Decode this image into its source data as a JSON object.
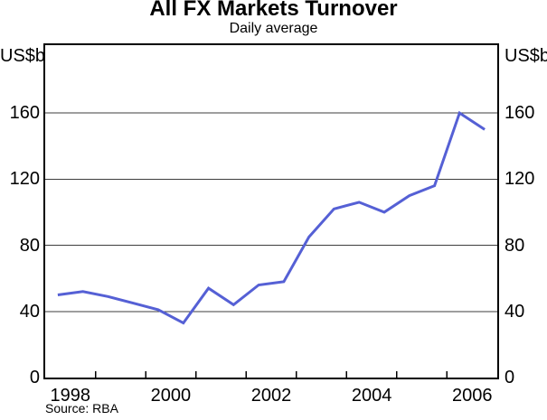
{
  "chart": {
    "title": "All FX Markets Turnover",
    "subtitle": "Daily average",
    "unit_left": "US$b",
    "unit_right": "US$b",
    "source": "Source: RBA"
  },
  "chart_data": {
    "type": "line",
    "title": "All FX Markets Turnover",
    "subtitle": "Daily average",
    "ylabel_left": "US$b",
    "ylabel_right": "US$b",
    "source": "Source: RBA",
    "grid": "horizontal",
    "legend_position": "none",
    "xlim": [
      1998,
      2007
    ],
    "ylim": [
      0,
      201
    ],
    "yticks": [
      0,
      40,
      80,
      120,
      160
    ],
    "ytick_gridlines": [
      40,
      80,
      120,
      160
    ],
    "x_boundary_ticks": [
      1999,
      2000,
      2001,
      2002,
      2003,
      2004,
      2005,
      2006
    ],
    "xtick_labels": [
      "1998",
      "2000",
      "2002",
      "2004",
      "2006"
    ],
    "xtick_positions": [
      1998.5,
      2000.5,
      2002.5,
      2004.5,
      2006.5
    ],
    "line_color": "#5560d5",
    "gridline_color": "#3d3d3d",
    "series": [
      {
        "name": "All FX Markets Turnover",
        "periods": [
          "1998 H1",
          "1998 H2",
          "1999 H1",
          "1999 H2",
          "2000 H1",
          "2000 H2",
          "2001 H1",
          "2001 H2",
          "2002 H1",
          "2002 H2",
          "2003 H1",
          "2003 H2",
          "2004 H1",
          "2004 H2",
          "2005 H1",
          "2005 H2",
          "2006 H1",
          "2006 H2"
        ],
        "x": [
          1998.25,
          1998.75,
          1999.25,
          1999.75,
          2000.25,
          2000.75,
          2001.25,
          2001.75,
          2002.25,
          2002.75,
          2003.25,
          2003.75,
          2004.25,
          2004.75,
          2005.25,
          2005.75,
          2006.25,
          2006.75
        ],
        "values": [
          50,
          52,
          49,
          45,
          41,
          33,
          54,
          44,
          56,
          58,
          85,
          102,
          106,
          100,
          110,
          116,
          160,
          150
        ]
      }
    ]
  }
}
